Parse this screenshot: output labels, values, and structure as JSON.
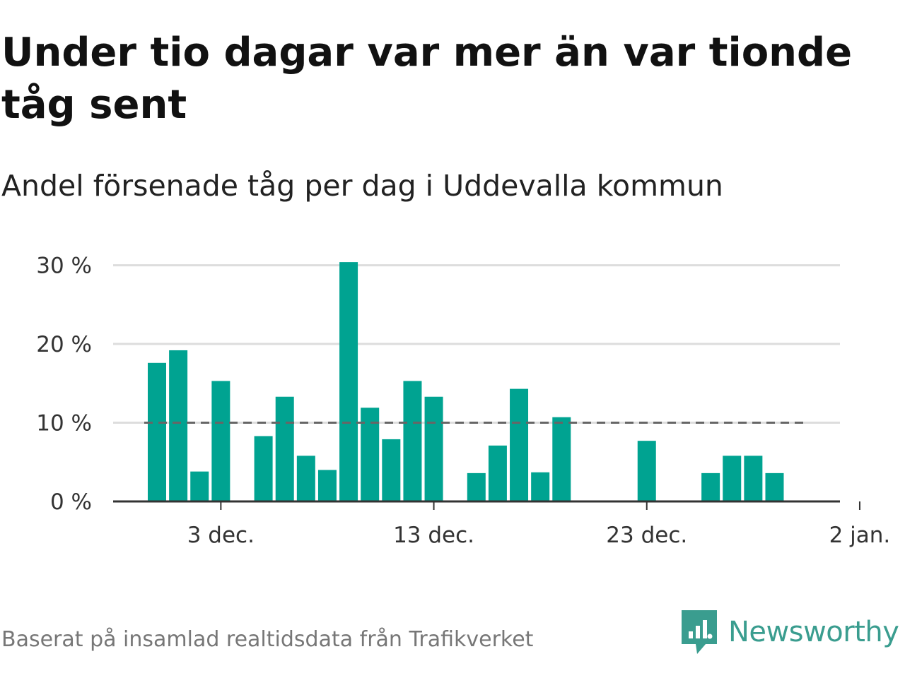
{
  "title": "Under tio dagar var mer än var tionde tåg sent",
  "subtitle": "Andel försenade tåg per dag i Uddevalla kommun",
  "source": "Baserat på insamlad realtidsdata från Trafikverket",
  "brand": {
    "name": "Newsworthy",
    "icon": "newsworthy-logo-icon",
    "color": "#3a9d8f"
  },
  "colors": {
    "bar": "#00a391",
    "reference_line": "#666666",
    "grid": "#dddddd",
    "axis": "#333333"
  },
  "chart_data": {
    "type": "bar",
    "x_unit": "date",
    "x": [
      "2023-11-30",
      "2023-12-01",
      "2023-12-02",
      "2023-12-03",
      "2023-12-04",
      "2023-12-05",
      "2023-12-06",
      "2023-12-07",
      "2023-12-08",
      "2023-12-09",
      "2023-12-10",
      "2023-12-11",
      "2023-12-12",
      "2023-12-13",
      "2023-12-14",
      "2023-12-15",
      "2023-12-16",
      "2023-12-17",
      "2023-12-18",
      "2023-12-19",
      "2023-12-20",
      "2023-12-21",
      "2023-12-22",
      "2023-12-23",
      "2023-12-24",
      "2023-12-25",
      "2023-12-26",
      "2023-12-27",
      "2023-12-28",
      "2023-12-29",
      "2023-12-30",
      "2023-12-31",
      "2024-01-01"
    ],
    "values": [
      17.6,
      19.2,
      3.8,
      15.3,
      null,
      8.3,
      13.3,
      5.8,
      4.0,
      30.4,
      11.9,
      7.9,
      15.3,
      13.3,
      null,
      3.6,
      7.1,
      14.3,
      3.7,
      10.7,
      null,
      null,
      null,
      7.7,
      null,
      null,
      3.6,
      5.8,
      5.8,
      3.6,
      null,
      null,
      null
    ],
    "unit": "%",
    "reference_line": 10,
    "ylim": [
      0,
      30.5
    ],
    "yticks": [
      0,
      10,
      20,
      30
    ],
    "ytick_labels": [
      "0 %",
      "10 %",
      "20 %",
      "30 %"
    ],
    "xticks": [
      "2023-12-03",
      "2023-12-13",
      "2023-12-23",
      "2024-01-02"
    ],
    "xtick_labels": [
      "3 dec.",
      "13 dec.",
      "23 dec.",
      "2 jan."
    ],
    "grid": true,
    "legend": "none"
  }
}
